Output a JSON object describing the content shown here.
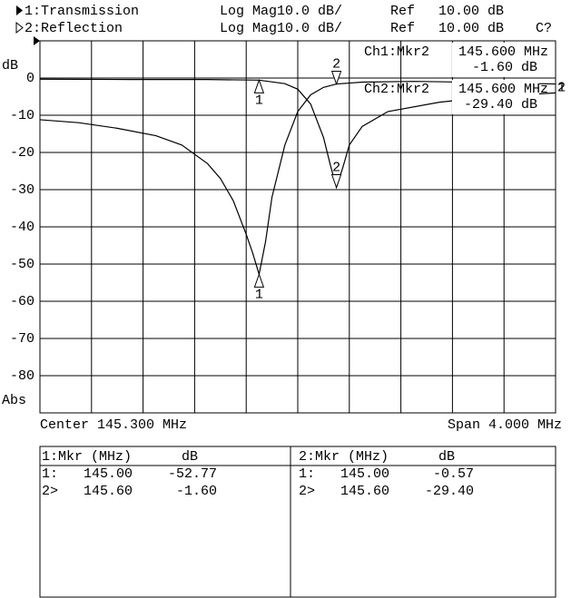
{
  "header": [
    {
      "channel": "1:Transmission",
      "format": "Log Mag",
      "scale": "10.0 dB/",
      "ref": "Ref",
      "ref_value": "10.00 dB"
    },
    {
      "channel": "2:Reflection",
      "format": "Log Mag",
      "scale": "10.0 dB/",
      "ref": "Ref",
      "ref_value": "10.00 dB",
      "status": "C?"
    }
  ],
  "readouts": [
    {
      "marker": "Ch1:Mkr2",
      "freq": "145.600 MHz",
      "value": "-1.60 dB"
    },
    {
      "marker": "Ch2:Mkr2",
      "freq": "145.600 MHz",
      "value": "-29.40 dB"
    }
  ],
  "footer": {
    "center": "Center 145.300 MHz",
    "span": "Span 4.000 MHz"
  },
  "marker_tables": [
    {
      "header": [
        "1:Mkr (MHz)",
        "dB"
      ],
      "rows": [
        [
          "1:",
          "145.00",
          "-52.77"
        ],
        [
          "2>",
          "145.60",
          "-1.60"
        ]
      ]
    },
    {
      "header": [
        "2:Mkr (MHz)",
        "dB"
      ],
      "rows": [
        [
          "1:",
          "145.00",
          "-0.57"
        ],
        [
          "2>",
          "145.60",
          "-29.40"
        ]
      ]
    }
  ],
  "chart_data": {
    "type": "line",
    "y_label": "dB",
    "y_bottom_label": "Abs",
    "xlim": [
      143.3,
      147.3
    ],
    "ylim": [
      -90,
      10
    ],
    "yticks": [
      0,
      -10,
      -20,
      -30,
      -40,
      -50,
      -60,
      -70,
      -80
    ],
    "grid": true,
    "series": [
      {
        "name": "1",
        "color": "#000000",
        "x": [
          143.3,
          143.6,
          143.9,
          144.2,
          144.4,
          144.6,
          144.7,
          144.8,
          144.9,
          144.95,
          145.0,
          145.05,
          145.1,
          145.2,
          145.3,
          145.4,
          145.5,
          145.6,
          145.8,
          146.2,
          146.6,
          147.0,
          147.3
        ],
        "values": [
          -11.2,
          -12,
          -13.5,
          -15.5,
          -18,
          -23,
          -27,
          -33,
          -42,
          -47,
          -52.77,
          -44,
          -32,
          -18,
          -9,
          -4.5,
          -2.5,
          -1.6,
          -1.1,
          -0.9,
          -1.1,
          -1.4,
          -1.6
        ]
      },
      {
        "name": "2",
        "color": "#000000",
        "x": [
          143.3,
          144.0,
          144.6,
          145.0,
          145.2,
          145.3,
          145.4,
          145.5,
          145.55,
          145.6,
          145.65,
          145.7,
          145.8,
          146.0,
          146.4,
          146.8,
          147.3
        ],
        "values": [
          -0.3,
          -0.4,
          -0.4,
          -0.57,
          -1.5,
          -3,
          -7,
          -16,
          -23,
          -29.4,
          -24,
          -18,
          -13,
          -9,
          -6.5,
          -5,
          -4
        ]
      }
    ],
    "markers": [
      {
        "label": "1",
        "x": 145.0,
        "values": [
          -52.77,
          -0.57
        ]
      },
      {
        "label": "2",
        "x": 145.6,
        "values": [
          -1.6,
          -29.4
        ]
      }
    ]
  }
}
